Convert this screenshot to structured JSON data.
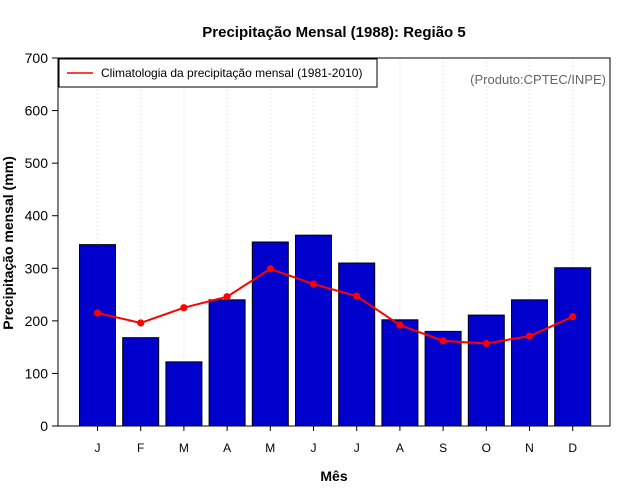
{
  "chart_data": {
    "type": "bar",
    "title": "Precipitação Mensal (1988): Região 5",
    "xlabel": "Mês",
    "ylabel": "Precipitação mensal (mm)",
    "ylim": [
      0,
      700
    ],
    "yticks": [
      0,
      100,
      200,
      300,
      400,
      500,
      600,
      700
    ],
    "categories": [
      "J",
      "F",
      "M",
      "A",
      "M",
      "J",
      "J",
      "A",
      "S",
      "O",
      "N",
      "D"
    ],
    "series": [
      {
        "name": "Precipitação mensal (1988)",
        "kind": "bar",
        "values": [
          345,
          168,
          122,
          240,
          350,
          363,
          310,
          202,
          180,
          211,
          240,
          301
        ]
      },
      {
        "name": "Climatologia da precipitação mensal (1981-2010)",
        "kind": "line",
        "values": [
          215,
          196,
          225,
          246,
          299,
          270,
          247,
          192,
          162,
          157,
          171,
          208
        ]
      }
    ],
    "legend": {
      "position": "top-left",
      "label": "Climatologia da precipitação mensal (1981-2010)"
    },
    "credit": "(Produto:CPTEC/INPE)",
    "grid": "vertical-dotted"
  },
  "colors": {
    "bar_fill": "#0000cc",
    "bar_stroke": "#000000",
    "line": "#ff0000",
    "grid": "#d3d3d3",
    "credit": "#666666"
  }
}
